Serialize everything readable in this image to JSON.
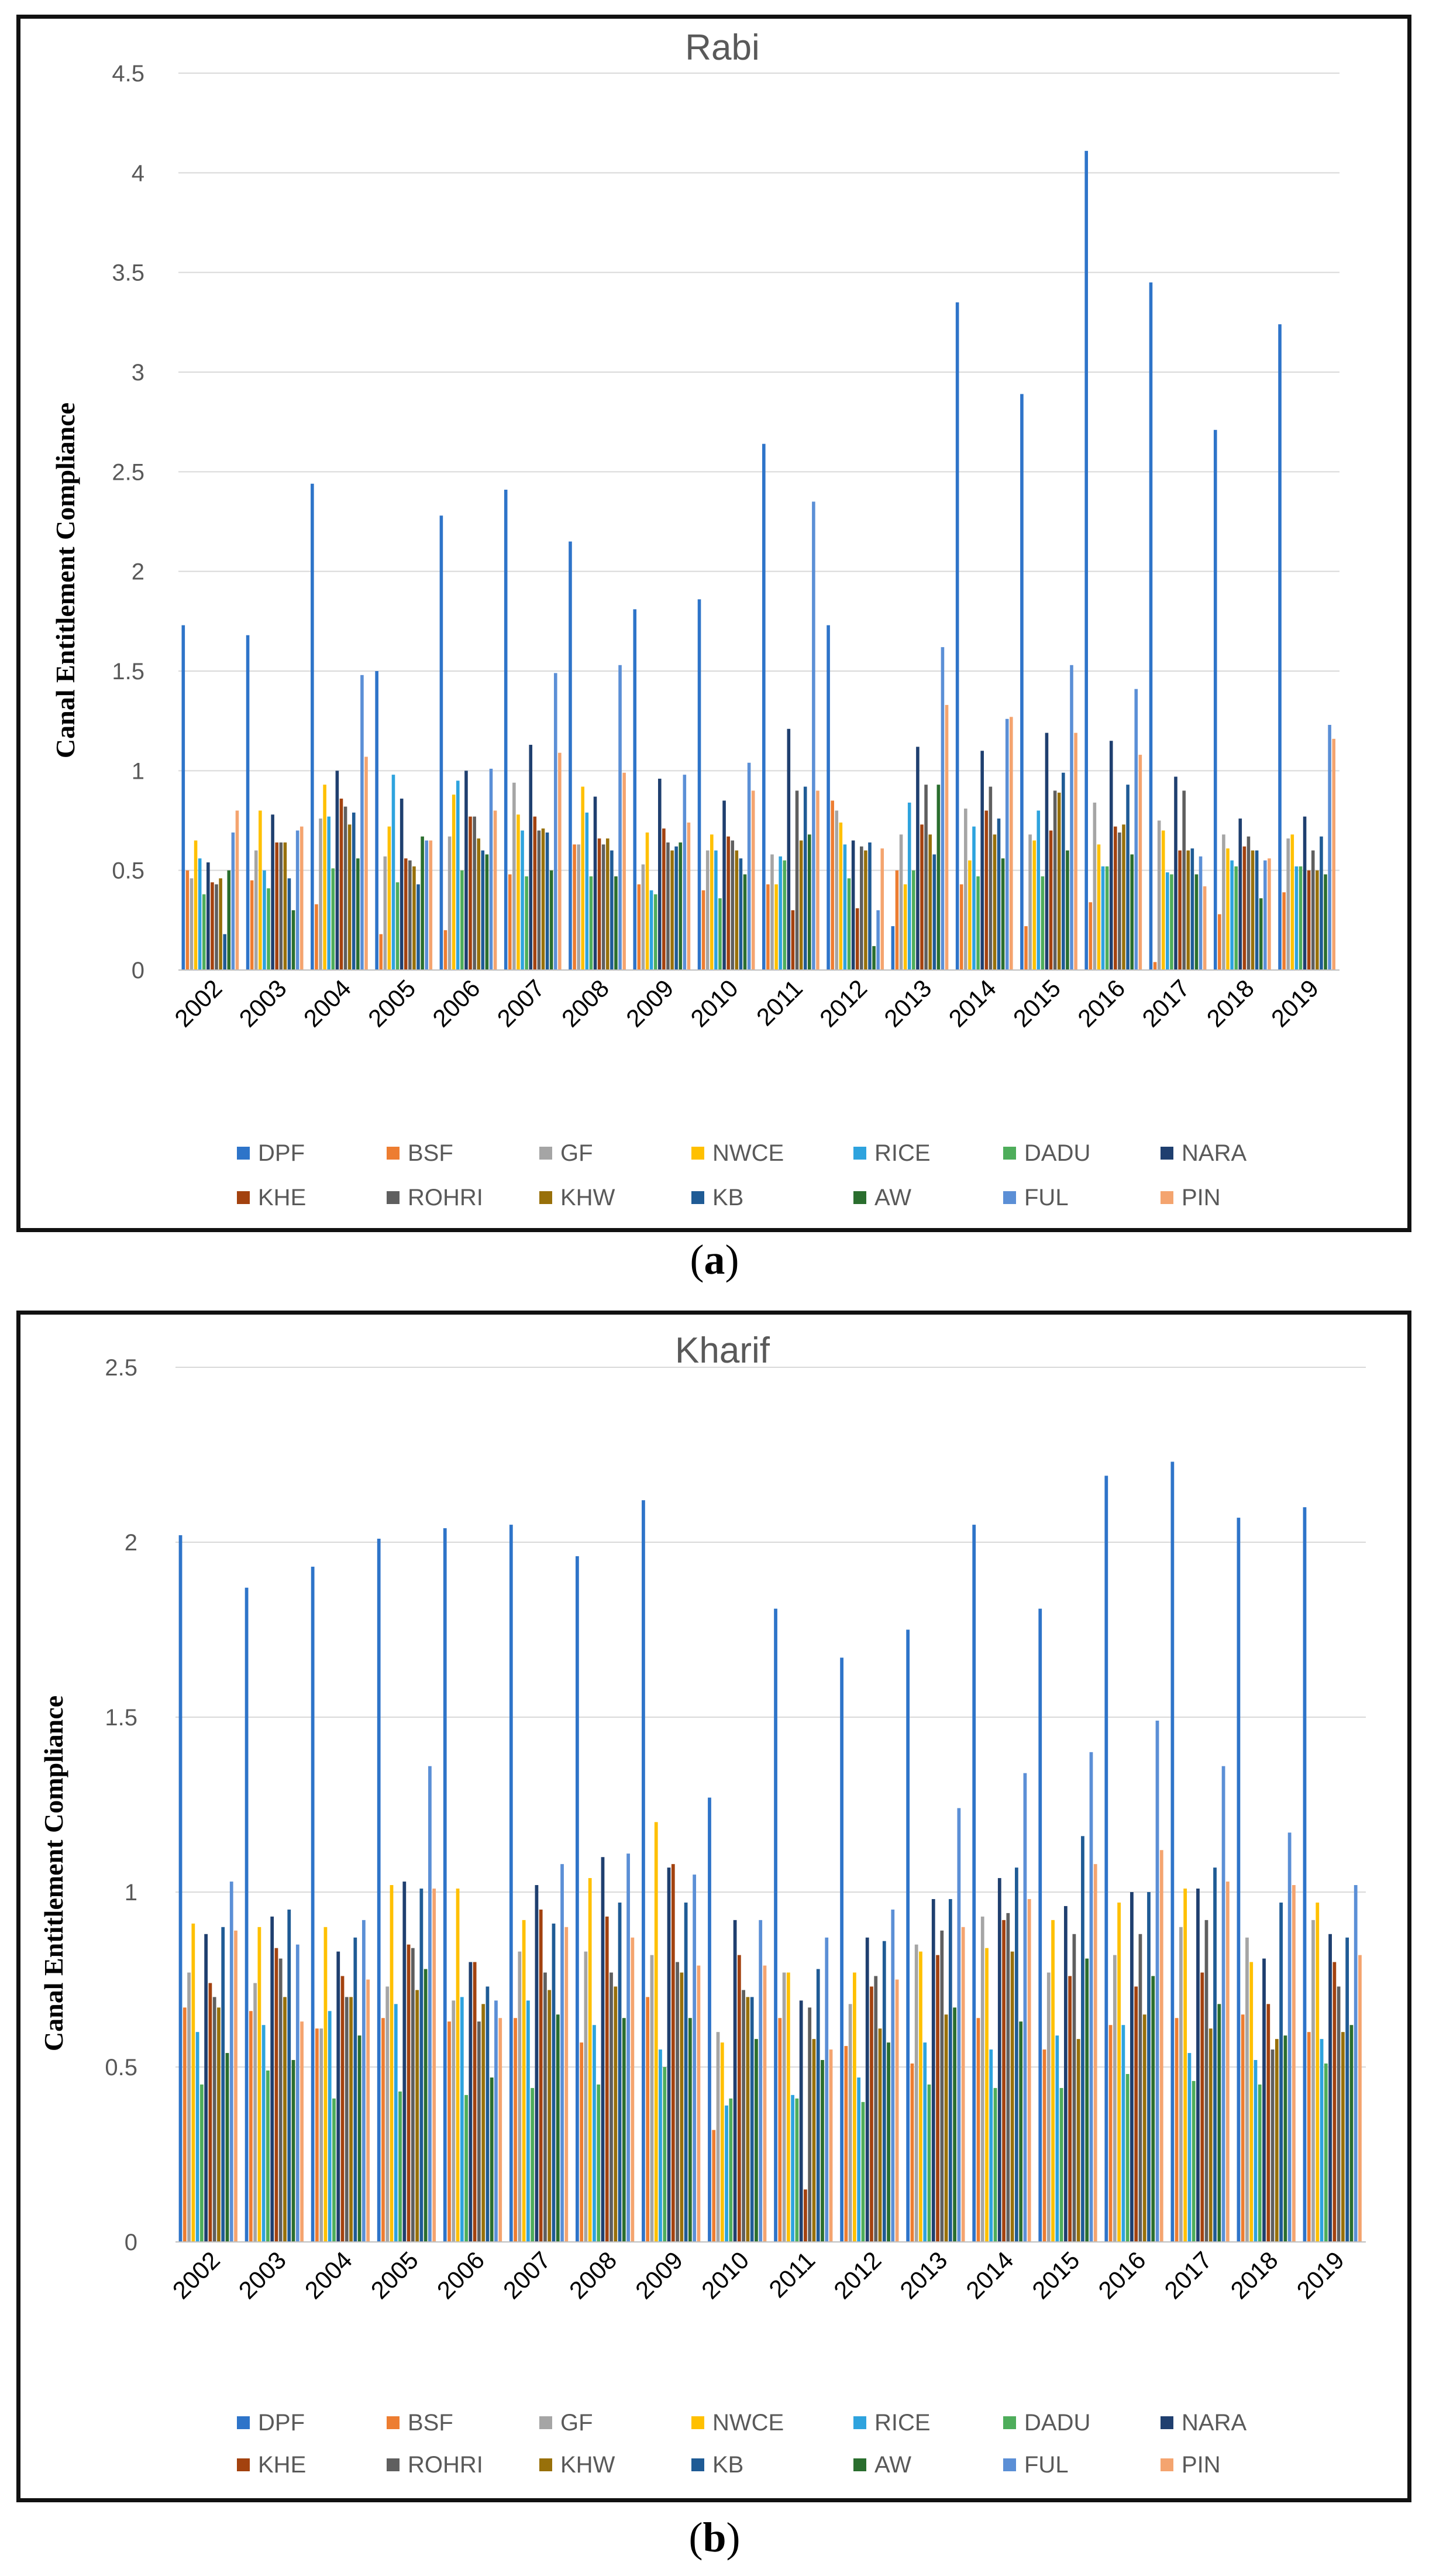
{
  "panels": [
    {
      "id": "a",
      "caption": {
        "open": "(",
        "label": "a",
        "close": ")"
      }
    },
    {
      "id": "b",
      "caption": {
        "open": "(",
        "label": "b",
        "close": ")"
      }
    }
  ],
  "series_colors": {
    "DPF": "#2e74c9",
    "BSF": "#ed7d31",
    "GF": "#a5a5a5",
    "NWCE": "#ffc000",
    "RICE": "#2ea3de",
    "DADU": "#4ead5b",
    "NARA": "#1f3f6f",
    "KHE": "#a3420f",
    "ROHRI": "#5f5f5f",
    "KHW": "#98700a",
    "KB": "#1f5b95",
    "AW": "#2a6e2e",
    "FUL": "#5b8fd6",
    "PIN": "#f4a46f"
  },
  "chart_data": [
    {
      "type": "bar",
      "title": "Rabi",
      "xlabel": "",
      "ylabel": "Canal Entitlement Compliance",
      "ylim": [
        0,
        4.5
      ],
      "yticks": [
        "0",
        "0.5",
        "1",
        "1.5",
        "2",
        "2.5",
        "3",
        "3.5",
        "4",
        "4.5"
      ],
      "grid": true,
      "legend": "bottom",
      "categories": [
        "2002",
        "2003",
        "2004",
        "2005",
        "2006",
        "2007",
        "2008",
        "2009",
        "2010",
        "2011",
        "2012",
        "2013",
        "2014",
        "2015",
        "2016",
        "2017",
        "2018",
        "2019"
      ],
      "series": [
        {
          "name": "DPF",
          "values": [
            1.73,
            1.68,
            2.44,
            1.5,
            2.28,
            2.41,
            2.15,
            1.81,
            1.86,
            2.64,
            1.73,
            0.22,
            3.35,
            2.89,
            4.11,
            3.45,
            2.71,
            3.24
          ]
        },
        {
          "name": "BSF",
          "values": [
            0.5,
            0.45,
            0.33,
            0.18,
            0.2,
            0.48,
            0.63,
            0.43,
            0.4,
            0.43,
            0.85,
            0.5,
            0.43,
            0.22,
            0.34,
            0.04,
            0.28,
            0.39
          ]
        },
        {
          "name": "GF",
          "values": [
            0.46,
            0.6,
            0.76,
            0.57,
            0.67,
            0.94,
            0.63,
            0.53,
            0.6,
            0.58,
            0.8,
            0.68,
            0.81,
            0.68,
            0.84,
            0.75,
            0.68,
            0.66
          ]
        },
        {
          "name": "NWCE",
          "values": [
            0.65,
            0.8,
            0.93,
            0.72,
            0.88,
            0.78,
            0.92,
            0.69,
            0.68,
            0.43,
            0.74,
            0.43,
            0.55,
            0.65,
            0.63,
            0.7,
            0.61,
            0.68
          ]
        },
        {
          "name": "RICE",
          "values": [
            0.56,
            0.5,
            0.77,
            0.98,
            0.95,
            0.7,
            0.79,
            0.4,
            0.6,
            0.57,
            0.63,
            0.84,
            0.72,
            0.8,
            0.52,
            0.49,
            0.55,
            0.52
          ]
        },
        {
          "name": "DADU",
          "values": [
            0.38,
            0.41,
            0.51,
            0.44,
            0.5,
            0.47,
            0.47,
            0.38,
            0.36,
            0.55,
            0.46,
            0.5,
            0.47,
            0.47,
            0.52,
            0.48,
            0.52,
            0.52
          ]
        },
        {
          "name": "NARA",
          "values": [
            0.54,
            0.78,
            1.0,
            0.86,
            1.0,
            1.13,
            0.87,
            0.96,
            0.85,
            1.21,
            0.65,
            1.12,
            1.1,
            1.19,
            1.15,
            0.97,
            0.76,
            0.77
          ]
        },
        {
          "name": "KHE",
          "values": [
            0.44,
            0.64,
            0.86,
            0.56,
            0.77,
            0.77,
            0.66,
            0.71,
            0.67,
            0.3,
            0.31,
            0.73,
            0.8,
            0.7,
            0.72,
            0.6,
            0.62,
            0.5
          ]
        },
        {
          "name": "ROHRI",
          "values": [
            0.43,
            0.64,
            0.82,
            0.55,
            0.77,
            0.7,
            0.63,
            0.64,
            0.65,
            0.9,
            0.62,
            0.93,
            0.92,
            0.9,
            0.69,
            0.9,
            0.67,
            0.6
          ]
        },
        {
          "name": "KHW",
          "values": [
            0.46,
            0.64,
            0.73,
            0.52,
            0.66,
            0.71,
            0.66,
            0.6,
            0.6,
            0.65,
            0.6,
            0.68,
            0.68,
            0.89,
            0.73,
            0.6,
            0.6,
            0.5
          ]
        },
        {
          "name": "KB",
          "values": [
            0.18,
            0.46,
            0.79,
            0.43,
            0.6,
            0.69,
            0.6,
            0.62,
            0.56,
            0.92,
            0.64,
            0.58,
            0.76,
            0.99,
            0.93,
            0.61,
            0.6,
            0.67
          ]
        },
        {
          "name": "AW",
          "values": [
            0.5,
            0.3,
            0.56,
            0.67,
            0.58,
            0.5,
            0.47,
            0.64,
            0.48,
            0.68,
            0.12,
            0.93,
            0.56,
            0.6,
            0.58,
            0.48,
            0.36,
            0.48
          ]
        },
        {
          "name": "FUL",
          "values": [
            0.69,
            0.7,
            1.48,
            0.65,
            1.01,
            1.49,
            1.53,
            0.98,
            1.04,
            2.35,
            0.3,
            1.62,
            1.26,
            1.53,
            1.41,
            0.57,
            0.55,
            1.23
          ]
        },
        {
          "name": "PIN",
          "values": [
            0.8,
            0.72,
            1.07,
            0.65,
            0.8,
            1.09,
            0.99,
            0.74,
            0.9,
            0.9,
            0.61,
            1.33,
            1.27,
            1.19,
            1.08,
            0.42,
            0.56,
            1.16
          ]
        }
      ]
    },
    {
      "type": "bar",
      "title": "Kharif",
      "xlabel": "",
      "ylabel": "Canal Entitlement Compliance",
      "ylim": [
        0,
        2.5
      ],
      "yticks": [
        "0",
        "0.5",
        "1",
        "1.5",
        "2",
        "2.5"
      ],
      "grid": true,
      "legend": "bottom",
      "categories": [
        "2002",
        "2003",
        "2004",
        "2005",
        "2006",
        "2007",
        "2008",
        "2009",
        "2010",
        "2011",
        "2012",
        "2013",
        "2014",
        "2015",
        "2016",
        "2017",
        "2018",
        "2019"
      ],
      "series": [
        {
          "name": "DPF",
          "values": [
            2.02,
            1.87,
            1.93,
            2.01,
            2.04,
            2.05,
            1.96,
            2.12,
            1.27,
            1.81,
            1.67,
            1.75,
            2.05,
            1.81,
            2.19,
            2.23,
            2.07,
            2.1
          ]
        },
        {
          "name": "BSF",
          "values": [
            0.67,
            0.66,
            0.61,
            0.64,
            0.63,
            0.64,
            0.57,
            0.7,
            0.32,
            0.64,
            0.56,
            0.51,
            0.64,
            0.55,
            0.62,
            0.64,
            0.65,
            0.6
          ]
        },
        {
          "name": "GF",
          "values": [
            0.77,
            0.74,
            0.61,
            0.73,
            0.69,
            0.83,
            0.83,
            0.82,
            0.6,
            0.77,
            0.68,
            0.85,
            0.93,
            0.77,
            0.82,
            0.9,
            0.87,
            0.92
          ]
        },
        {
          "name": "NWCE",
          "values": [
            0.91,
            0.9,
            0.9,
            1.02,
            1.01,
            0.92,
            1.04,
            1.2,
            0.57,
            0.77,
            0.77,
            0.83,
            0.84,
            0.92,
            0.97,
            1.01,
            0.8,
            0.97
          ]
        },
        {
          "name": "RICE",
          "values": [
            0.6,
            0.62,
            0.66,
            0.68,
            0.7,
            0.69,
            0.62,
            0.55,
            0.39,
            0.42,
            0.47,
            0.57,
            0.55,
            0.59,
            0.62,
            0.54,
            0.52,
            0.58
          ]
        },
        {
          "name": "DADU",
          "values": [
            0.45,
            0.49,
            0.41,
            0.43,
            0.42,
            0.44,
            0.45,
            0.5,
            0.41,
            0.41,
            0.4,
            0.45,
            0.44,
            0.44,
            0.48,
            0.46,
            0.45,
            0.51
          ]
        },
        {
          "name": "NARA",
          "values": [
            0.88,
            0.93,
            0.83,
            1.03,
            0.8,
            1.02,
            1.1,
            1.07,
            0.92,
            0.69,
            0.87,
            0.98,
            1.04,
            0.96,
            1.0,
            1.01,
            0.81,
            0.88
          ]
        },
        {
          "name": "KHE",
          "values": [
            0.74,
            0.84,
            0.76,
            0.85,
            0.8,
            0.95,
            0.93,
            1.08,
            0.82,
            0.15,
            0.73,
            0.82,
            0.92,
            0.76,
            0.73,
            0.77,
            0.68,
            0.8
          ]
        },
        {
          "name": "ROHRI",
          "values": [
            0.7,
            0.81,
            0.7,
            0.84,
            0.63,
            0.77,
            0.77,
            0.8,
            0.72,
            0.67,
            0.76,
            0.89,
            0.94,
            0.88,
            0.88,
            0.92,
            0.55,
            0.73
          ]
        },
        {
          "name": "KHW",
          "values": [
            0.67,
            0.7,
            0.7,
            0.72,
            0.68,
            0.72,
            0.73,
            0.77,
            0.7,
            0.58,
            0.61,
            0.65,
            0.83,
            0.58,
            0.65,
            0.61,
            0.58,
            0.6
          ]
        },
        {
          "name": "KB",
          "values": [
            0.9,
            0.95,
            0.87,
            1.01,
            0.73,
            0.91,
            0.97,
            0.97,
            0.7,
            0.78,
            0.86,
            0.98,
            1.07,
            1.16,
            1.0,
            1.07,
            0.97,
            0.87
          ]
        },
        {
          "name": "AW",
          "values": [
            0.54,
            0.52,
            0.59,
            0.78,
            0.47,
            0.65,
            0.64,
            0.64,
            0.58,
            0.52,
            0.57,
            0.67,
            0.63,
            0.81,
            0.76,
            0.68,
            0.59,
            0.62
          ]
        },
        {
          "name": "FUL",
          "values": [
            1.03,
            0.85,
            0.92,
            1.36,
            0.69,
            1.08,
            1.11,
            1.05,
            0.92,
            0.87,
            0.95,
            1.24,
            1.34,
            1.4,
            1.49,
            1.36,
            1.17,
            1.02
          ]
        },
        {
          "name": "PIN",
          "values": [
            0.89,
            0.63,
            0.75,
            1.01,
            0.64,
            0.9,
            0.87,
            0.79,
            0.79,
            0.55,
            0.75,
            0.9,
            0.98,
            1.08,
            1.12,
            1.03,
            1.02,
            0.82
          ]
        }
      ]
    }
  ]
}
